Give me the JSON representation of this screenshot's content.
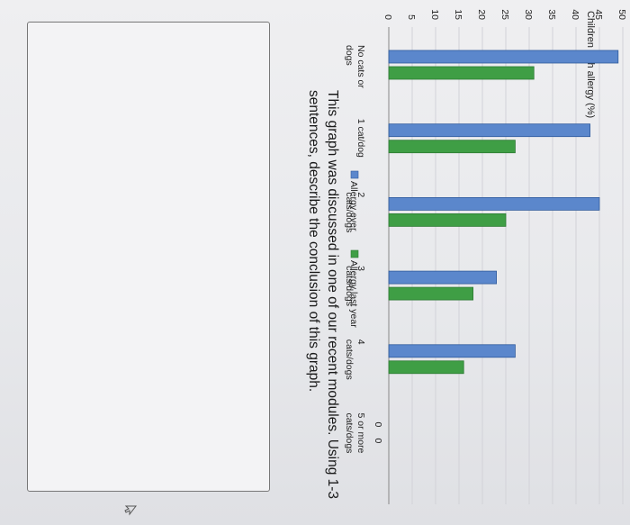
{
  "chart_data": {
    "type": "bar",
    "ylabel": "Children with allergy (%)",
    "ylim": [
      0,
      50
    ],
    "yticks": [
      0,
      5,
      10,
      15,
      20,
      25,
      30,
      35,
      40,
      45,
      50
    ],
    "categories": [
      "No cats or dogs",
      "1 cat/dog",
      "2 cats/dogs",
      "3 cats/dogs",
      "4 cats/dogs",
      "5 or more cats/dogs"
    ],
    "series": [
      {
        "name": "Allergy ever",
        "color": "#5b87cc",
        "values": [
          49,
          43,
          45,
          23,
          27,
          0
        ]
      },
      {
        "name": "Allergy last year",
        "color": "#3f9e45",
        "values": [
          31,
          27,
          25,
          18,
          16,
          0
        ]
      }
    ],
    "zero_labels": [
      "0",
      "0"
    ],
    "grid": true,
    "legend": "bottom"
  },
  "question": {
    "text": "This graph was discussed in one of our recent modules.  Using 1-3 sentences, describe the conclusion of this graph."
  },
  "icons": {
    "cursor": "cursor-icon"
  }
}
